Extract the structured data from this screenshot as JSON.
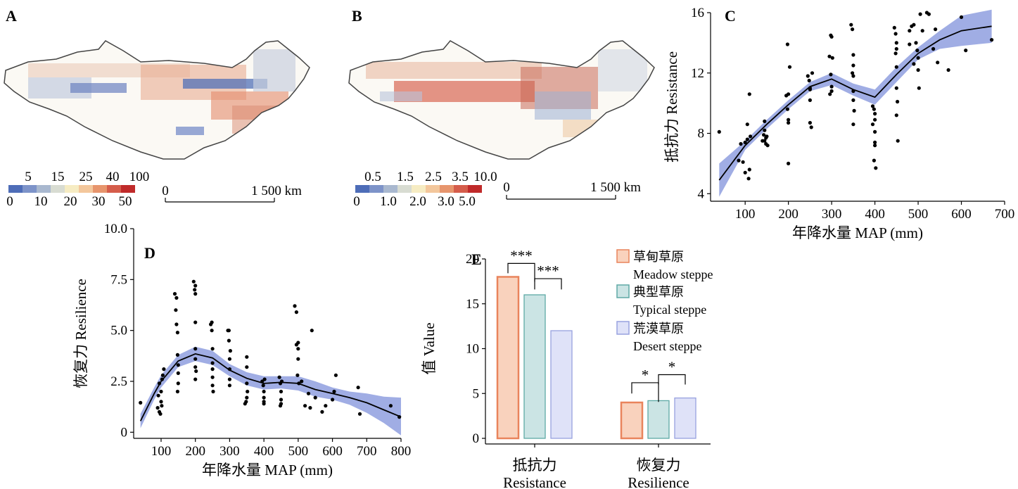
{
  "colors": {
    "band": "#8f9fdf",
    "line": "#000000",
    "meadow_fill": "#f9d2bd",
    "meadow_stroke": "#e9845c",
    "typical_fill": "#cbe4e4",
    "typical_stroke": "#5ea9a5",
    "desert_fill": "#dfe2f8",
    "desert_stroke": "#98a2df",
    "map_ramp": [
      "#4e6db8",
      "#7d93c9",
      "#a9b8cf",
      "#d8dcd2",
      "#f6ecc3",
      "#f3c79c",
      "#e7956d",
      "#d55d4b",
      "#c02a2a"
    ]
  },
  "panels": {
    "A": {
      "letter": "A",
      "legend_top": [
        "5",
        "15",
        "25",
        "40",
        "100"
      ],
      "legend_bottom": [
        "0",
        "10",
        "20",
        "30",
        "50"
      ],
      "scale_left": "0",
      "scale_right": "1 500 km"
    },
    "B": {
      "letter": "B",
      "legend_top": [
        "0.5",
        "1.5",
        "2.5",
        "3.5",
        "10.0"
      ],
      "legend_bottom": [
        "0",
        "1.0",
        "2.0",
        "3.0",
        "5.0"
      ],
      "scale_left": "0",
      "scale_right": "1 500 km"
    }
  },
  "chart_data": [
    {
      "panel": "C",
      "type": "scatter",
      "xlabel": "年降水量 MAP (mm)",
      "ylabel": "抵抗力 Resistance",
      "xlim": [
        20,
        700
      ],
      "ylim": [
        3.5,
        16
      ],
      "xticks": [
        100,
        200,
        300,
        400,
        500,
        600,
        700
      ],
      "yticks": [
        4,
        8,
        12,
        16
      ],
      "fit": {
        "x": [
          40,
          100,
          150,
          200,
          250,
          300,
          350,
          400,
          450,
          500,
          550,
          600,
          670
        ],
        "y": [
          4.9,
          7.2,
          8.6,
          9.9,
          11.1,
          11.6,
          10.9,
          10.4,
          11.9,
          13.3,
          14.2,
          14.8,
          15.1
        ],
        "lower": [
          3.8,
          6.9,
          8.3,
          9.6,
          10.8,
          11.2,
          10.5,
          9.9,
          11.4,
          12.9,
          13.6,
          13.8,
          14.0
        ],
        "upper": [
          6.0,
          7.5,
          8.9,
          10.2,
          11.4,
          12.0,
          11.3,
          10.9,
          12.4,
          13.7,
          14.8,
          15.8,
          16.2
        ]
      },
      "points": [
        [
          40,
          8.1
        ],
        [
          85,
          6.2
        ],
        [
          90,
          7.3
        ],
        [
          95,
          6.1
        ],
        [
          100,
          5.4
        ],
        [
          100,
          7.4
        ],
        [
          105,
          8.6
        ],
        [
          108,
          5.0
        ],
        [
          110,
          5.6
        ],
        [
          110,
          10.6
        ],
        [
          105,
          7.6
        ],
        [
          112,
          7.8
        ],
        [
          140,
          7.5
        ],
        [
          143,
          7.9
        ],
        [
          145,
          8.2
        ],
        [
          145,
          8.8
        ],
        [
          148,
          7.3
        ],
        [
          150,
          7.8
        ],
        [
          148,
          7.7
        ],
        [
          152,
          7.2
        ],
        [
          145,
          7.5
        ],
        [
          195,
          10.5
        ],
        [
          200,
          10.6
        ],
        [
          198,
          9.6
        ],
        [
          200,
          8.9
        ],
        [
          200,
          8.7
        ],
        [
          200,
          6.0
        ],
        [
          203,
          12.4
        ],
        [
          198,
          13.9
        ],
        [
          245,
          11.8
        ],
        [
          248,
          11.5
        ],
        [
          250,
          10.9
        ],
        [
          250,
          10.2
        ],
        [
          250,
          8.7
        ],
        [
          253,
          8.4
        ],
        [
          250,
          11.0
        ],
        [
          255,
          12.0
        ],
        [
          295,
          13.1
        ],
        [
          298,
          14.5
        ],
        [
          300,
          14.4
        ],
        [
          300,
          11.1
        ],
        [
          300,
          10.8
        ],
        [
          298,
          11.9
        ],
        [
          302,
          13.0
        ],
        [
          296,
          10.6
        ],
        [
          345,
          15.2
        ],
        [
          348,
          14.9
        ],
        [
          350,
          13.2
        ],
        [
          350,
          12.5
        ],
        [
          350,
          11.8
        ],
        [
          350,
          10.8
        ],
        [
          350,
          10.2
        ],
        [
          352,
          9.5
        ],
        [
          350,
          8.6
        ],
        [
          348,
          12.0
        ],
        [
          395,
          9.8
        ],
        [
          398,
          9.6
        ],
        [
          400,
          9.3
        ],
        [
          400,
          8.9
        ],
        [
          400,
          8.1
        ],
        [
          400,
          7.4
        ],
        [
          400,
          7.2
        ],
        [
          398,
          6.2
        ],
        [
          402,
          5.7
        ],
        [
          395,
          8.6
        ],
        [
          445,
          15.0
        ],
        [
          448,
          14.6
        ],
        [
          450,
          14.0
        ],
        [
          450,
          13.6
        ],
        [
          450,
          12.4
        ],
        [
          450,
          11.0
        ],
        [
          452,
          10.1
        ],
        [
          450,
          9.2
        ],
        [
          453,
          7.5
        ],
        [
          448,
          13.3
        ],
        [
          480,
          14.8
        ],
        [
          485,
          15.1
        ],
        [
          490,
          15.2
        ],
        [
          495,
          14.0
        ],
        [
          498,
          13.5
        ],
        [
          500,
          13.0
        ],
        [
          500,
          12.2
        ],
        [
          502,
          11.0
        ],
        [
          480,
          13.9
        ],
        [
          490,
          12.6
        ],
        [
          505,
          15.9
        ],
        [
          510,
          14.8
        ],
        [
          520,
          16.0
        ],
        [
          525,
          15.9
        ],
        [
          535,
          13.6
        ],
        [
          540,
          14.9
        ],
        [
          545,
          12.7
        ],
        [
          570,
          12.2
        ],
        [
          600,
          15.7
        ],
        [
          610,
          13.5
        ],
        [
          670,
          14.2
        ]
      ]
    },
    {
      "panel": "D",
      "type": "scatter",
      "xlabel": "年降水量 MAP (mm)",
      "ylabel": "恢复力 Resilience",
      "xlim": [
        20,
        800
      ],
      "ylim": [
        -0.3,
        10
      ],
      "xticks": [
        100,
        200,
        300,
        400,
        500,
        600,
        700,
        800
      ],
      "yticks": [
        0,
        2.5,
        5.0,
        7.5,
        10.0
      ],
      "ytick_labels": [
        "0",
        "2.5",
        "5.0",
        "7.5",
        "10.0"
      ],
      "fit": {
        "x": [
          40,
          80,
          100,
          150,
          200,
          250,
          300,
          350,
          400,
          450,
          500,
          550,
          600,
          650,
          700,
          750,
          800
        ],
        "y": [
          0.55,
          1.9,
          2.5,
          3.5,
          3.85,
          3.65,
          3.05,
          2.65,
          2.4,
          2.45,
          2.4,
          2.1,
          1.9,
          1.7,
          1.45,
          1.1,
          0.75
        ],
        "lower": [
          0.2,
          1.6,
          2.2,
          3.2,
          3.5,
          3.3,
          2.75,
          2.3,
          2.1,
          2.15,
          2.05,
          1.75,
          1.6,
          1.35,
          0.95,
          0.45,
          -0.15
        ],
        "upper": [
          0.9,
          2.2,
          2.8,
          3.8,
          4.2,
          4.0,
          3.35,
          2.95,
          2.75,
          2.75,
          2.75,
          2.5,
          2.2,
          2.0,
          1.9,
          1.75,
          1.7
        ]
      },
      "points": [
        [
          40,
          1.45
        ],
        [
          90,
          1.2
        ],
        [
          92,
          1.8
        ],
        [
          95,
          1.0
        ],
        [
          95,
          2.4
        ],
        [
          98,
          0.9
        ],
        [
          100,
          2.0
        ],
        [
          100,
          1.5
        ],
        [
          102,
          1.3
        ],
        [
          105,
          2.8
        ],
        [
          108,
          3.1
        ],
        [
          103,
          2.6
        ],
        [
          140,
          6.8
        ],
        [
          143,
          6.0
        ],
        [
          145,
          6.6
        ],
        [
          145,
          5.3
        ],
        [
          148,
          4.9
        ],
        [
          148,
          3.8
        ],
        [
          150,
          3.3
        ],
        [
          150,
          2.9
        ],
        [
          150,
          2.4
        ],
        [
          148,
          2.0
        ],
        [
          195,
          7.4
        ],
        [
          198,
          7.0
        ],
        [
          200,
          7.2
        ],
        [
          200,
          6.8
        ],
        [
          200,
          5.4
        ],
        [
          200,
          4.1
        ],
        [
          200,
          3.6
        ],
        [
          200,
          3.2
        ],
        [
          200,
          2.6
        ],
        [
          202,
          3.0
        ],
        [
          245,
          5.3
        ],
        [
          248,
          5.0
        ],
        [
          250,
          4.1
        ],
        [
          250,
          3.4
        ],
        [
          250,
          3.1
        ],
        [
          250,
          2.7
        ],
        [
          250,
          2.3
        ],
        [
          252,
          2.0
        ],
        [
          248,
          5.4
        ],
        [
          295,
          5.0
        ],
        [
          298,
          4.5
        ],
        [
          300,
          3.6
        ],
        [
          300,
          3.1
        ],
        [
          300,
          2.6
        ],
        [
          300,
          2.3
        ],
        [
          302,
          4.0
        ],
        [
          298,
          5.0
        ],
        [
          345,
          1.4
        ],
        [
          348,
          1.5
        ],
        [
          350,
          1.7
        ],
        [
          350,
          2.4
        ],
        [
          350,
          3.2
        ],
        [
          350,
          3.7
        ],
        [
          352,
          2.0
        ],
        [
          395,
          2.5
        ],
        [
          398,
          2.3
        ],
        [
          400,
          2.0
        ],
        [
          400,
          1.7
        ],
        [
          400,
          1.5
        ],
        [
          400,
          1.4
        ],
        [
          402,
          2.6
        ],
        [
          445,
          2.7
        ],
        [
          448,
          2.4
        ],
        [
          450,
          2.0
        ],
        [
          450,
          1.6
        ],
        [
          450,
          1.4
        ],
        [
          452,
          2.5
        ],
        [
          448,
          1.3
        ],
        [
          490,
          6.2
        ],
        [
          495,
          5.9
        ],
        [
          500,
          4.4
        ],
        [
          500,
          4.1
        ],
        [
          500,
          3.6
        ],
        [
          498,
          2.8
        ],
        [
          502,
          2.4
        ],
        [
          495,
          4.3
        ],
        [
          510,
          2.5
        ],
        [
          520,
          1.3
        ],
        [
          530,
          1.9
        ],
        [
          535,
          1.2
        ],
        [
          540,
          5.0
        ],
        [
          550,
          1.7
        ],
        [
          570,
          1.0
        ],
        [
          580,
          1.3
        ],
        [
          600,
          1.6
        ],
        [
          605,
          2.0
        ],
        [
          610,
          2.8
        ],
        [
          675,
          2.2
        ],
        [
          680,
          0.9
        ],
        [
          770,
          1.3
        ],
        [
          795,
          0.75
        ]
      ]
    },
    {
      "panel": "E",
      "type": "bar",
      "ylabel": "值 Value",
      "ylim": [
        0,
        20
      ],
      "yticks": [
        0,
        5,
        10,
        15,
        20
      ],
      "categories": [
        {
          "zh": "抵抗力",
          "en": "Resistance"
        },
        {
          "zh": "恢复力",
          "en": "Resilience"
        }
      ],
      "series": [
        {
          "name_zh": "草甸草原",
          "name_en": "Meadow steppe",
          "values": [
            18.0,
            4.0
          ]
        },
        {
          "name_zh": "典型草原",
          "name_en": "Typical steppe",
          "values": [
            16.0,
            4.2
          ]
        },
        {
          "name_zh": "荒漠草原",
          "name_en": "Desert steppe",
          "values": [
            12.0,
            4.5
          ]
        }
      ],
      "significance": [
        {
          "category": 0,
          "pair": [
            0,
            1
          ],
          "label": "***"
        },
        {
          "category": 0,
          "pair": [
            1,
            2
          ],
          "label": "***"
        },
        {
          "category": 1,
          "pair": [
            0,
            1
          ],
          "label": "*"
        },
        {
          "category": 1,
          "pair": [
            1,
            2
          ],
          "label": "*"
        }
      ]
    }
  ]
}
